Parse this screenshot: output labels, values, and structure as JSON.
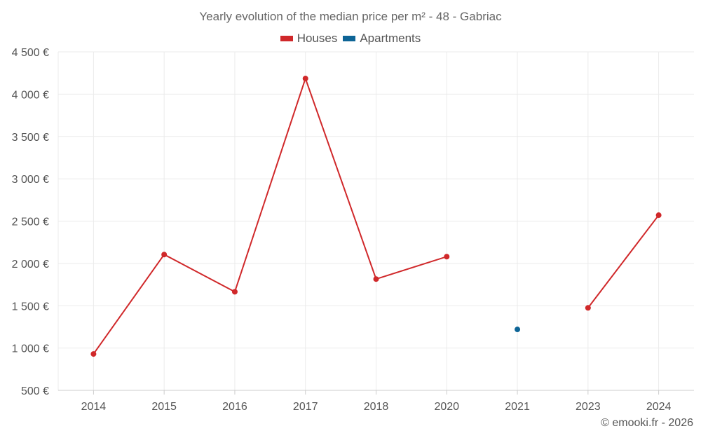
{
  "chart_data": {
    "type": "line",
    "title": "Yearly evolution of the median price per m² - 48 - Gabriac",
    "categories": [
      "2014",
      "2015",
      "2016",
      "2017",
      "2018",
      "2020",
      "2021",
      "2023",
      "2024"
    ],
    "series": [
      {
        "name": "Houses",
        "color": "#d0282a",
        "values": [
          930,
          2105,
          1665,
          4185,
          1815,
          2080,
          null,
          1475,
          2570
        ]
      },
      {
        "name": "Apartments",
        "color": "#0d6496",
        "values": [
          null,
          null,
          null,
          null,
          null,
          null,
          1220,
          null,
          null
        ]
      }
    ],
    "ylim": [
      500,
      4500
    ],
    "yticks": [
      500,
      1000,
      1500,
      2000,
      2500,
      3000,
      3500,
      4000,
      4500
    ],
    "ytick_labels": [
      "500 €",
      "1 000 €",
      "1 500 €",
      "2 000 €",
      "2 500 €",
      "3 000 €",
      "3 500 €",
      "4 000 €",
      "4 500 €"
    ],
    "xlabel": "",
    "ylabel": "",
    "grid": true,
    "legend_position": "top-center"
  },
  "credit": "© emooki.fr - 2026"
}
